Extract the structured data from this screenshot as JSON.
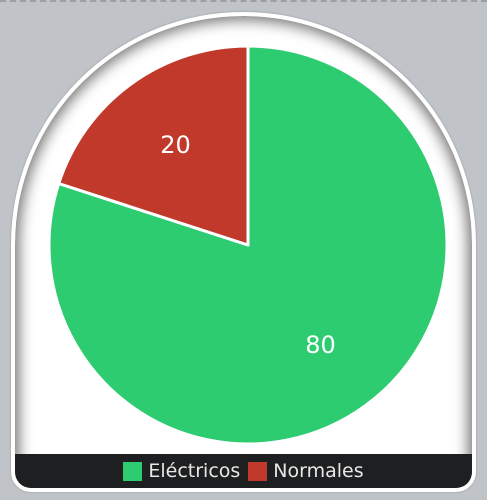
{
  "chart_data": {
    "type": "pie",
    "slices": [
      {
        "label": "Eléctricos",
        "value": 80,
        "color": "#2ecc71"
      },
      {
        "label": "Normales",
        "value": 20,
        "color": "#c0392b"
      }
    ],
    "legend": {
      "placement": "bottom",
      "items": [
        "Eléctricos",
        "Normales"
      ]
    },
    "start_angle_deg": 0,
    "direction": "clockwise",
    "label_color": "#ffffff",
    "slice_border_color": "#ffffff"
  }
}
